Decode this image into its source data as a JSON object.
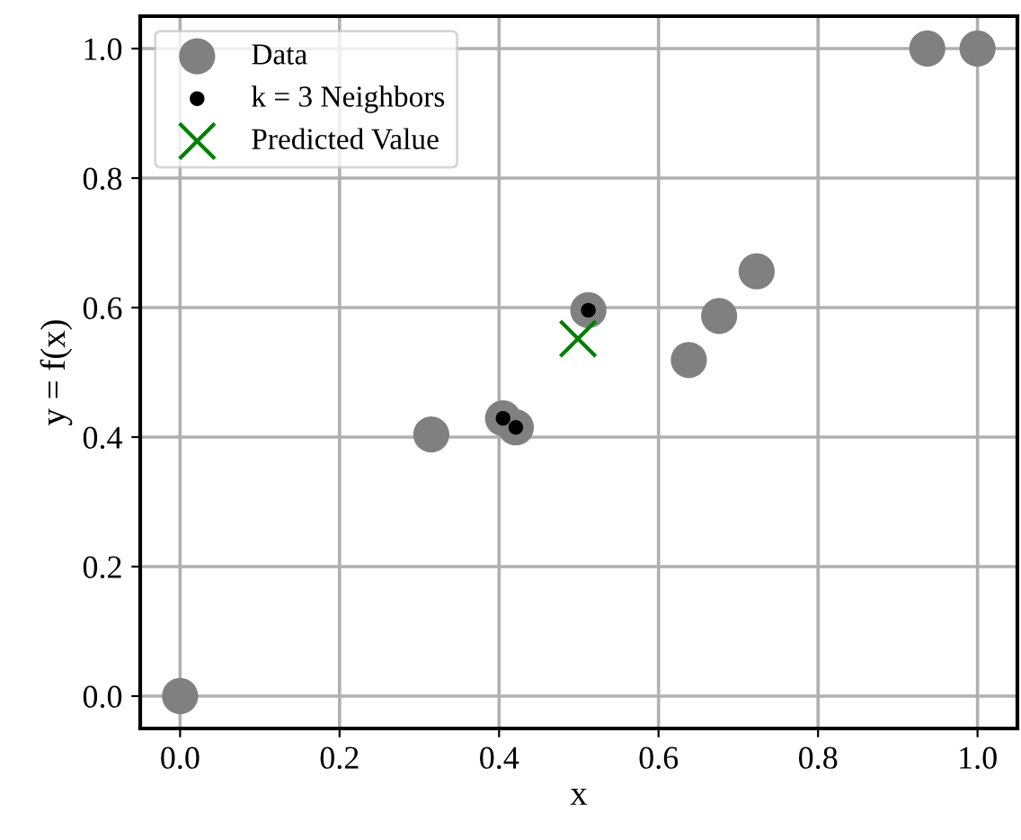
{
  "chart_data": {
    "type": "scatter",
    "xlabel": "x",
    "ylabel": "y = f(x)",
    "xlim": [
      -0.05,
      1.05
    ],
    "ylim": [
      -0.05,
      1.05
    ],
    "xticks": [
      {
        "value": 0,
        "label": "0.0"
      },
      0.2,
      0.4,
      0.6,
      0.8,
      {
        "value": 1,
        "label": "1.0"
      }
    ],
    "yticks": [
      {
        "value": 0,
        "label": "0.0"
      },
      0.2,
      0.4,
      0.6,
      0.8,
      {
        "value": 1,
        "label": "1.0"
      }
    ],
    "grid": true,
    "legend": "top left",
    "series": [
      {
        "name": "Data",
        "color": "#808080",
        "marker": "circle",
        "x": [
          0,
          0.315,
          0.405,
          0.421,
          0.512,
          0.638,
          0.676,
          0.723,
          0.937,
          1.0
        ],
        "values": [
          0,
          0.404,
          0.429,
          0.415,
          0.596,
          0.519,
          0.587,
          0.656,
          1.0,
          1.0
        ]
      },
      {
        "name": "k = 3 Neighbors",
        "color": "#000000",
        "marker": "circle",
        "x": [
          0.405,
          0.421,
          0.512
        ],
        "values": [
          0.429,
          0.415,
          0.596
        ]
      },
      {
        "name": "Predicted Value",
        "color": "#008000",
        "marker": "cross",
        "x": [
          0.499
        ],
        "values": [
          0.552
        ]
      }
    ]
  }
}
